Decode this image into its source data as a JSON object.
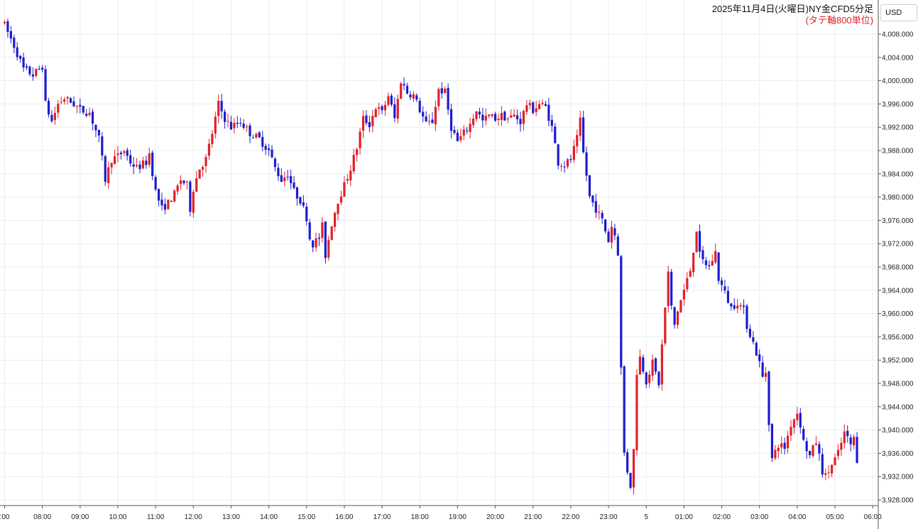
{
  "header": {
    "title": "2025年11月4日(火曜日)NY金CFD5分足",
    "subtitle": "(タテ軸800単位)",
    "currency": "USD"
  },
  "colors": {
    "up": "#e0202a",
    "down": "#1c1ccc",
    "grid": "#e8eef3",
    "background": "#ffffff"
  },
  "chart_data": {
    "type": "candlestick",
    "title": "2025年11月4日(火曜日)NY金CFD5分足",
    "subtitle": "(タテ軸800単位)",
    "currency": "USD",
    "y_axis_side": "right",
    "ylim": [
      3927,
      4010
    ],
    "y_ticks": [
      4008,
      4004,
      4000,
      3996,
      3992,
      3988,
      3984,
      3980,
      3976,
      3972,
      3968,
      3964,
      3960,
      3956,
      3952,
      3948,
      3944,
      3940,
      3936,
      3932,
      3928
    ],
    "y_tick_labels": [
      "4,008.000",
      "4,004.000",
      "4,000.000",
      "3,996.000",
      "3,992.000",
      "3,988.000",
      "3,984.000",
      "3,980.000",
      "3,976.000",
      "3,972.000",
      "3,968.000",
      "3,964.000",
      "3,960.000",
      "3,956.000",
      "3,952.000",
      "3,948.000",
      "3,944.000",
      "3,940.000",
      "3,936.000",
      "3,932.000",
      "3,928.000"
    ],
    "x_ticks": [
      {
        "label": ":00",
        "bar": 0
      },
      {
        "label": "08:00",
        "bar": 12
      },
      {
        "label": "09:00",
        "bar": 24
      },
      {
        "label": "10:00",
        "bar": 36
      },
      {
        "label": "11:00",
        "bar": 48
      },
      {
        "label": "12:00",
        "bar": 60
      },
      {
        "label": "13:00",
        "bar": 72
      },
      {
        "label": "14:00",
        "bar": 84
      },
      {
        "label": "15:00",
        "bar": 96
      },
      {
        "label": "16:00",
        "bar": 108
      },
      {
        "label": "17:00",
        "bar": 120
      },
      {
        "label": "18:00",
        "bar": 132
      },
      {
        "label": "19:00",
        "bar": 144
      },
      {
        "label": "20:00",
        "bar": 156
      },
      {
        "label": "21:00",
        "bar": 168
      },
      {
        "label": "22:00",
        "bar": 180
      },
      {
        "label": "23:00",
        "bar": 192
      },
      {
        "label": "5",
        "bar": 204
      },
      {
        "label": "01:00",
        "bar": 216
      },
      {
        "label": "02:00",
        "bar": 228
      },
      {
        "label": "03:00",
        "bar": 240
      },
      {
        "label": "04:00",
        "bar": 252
      },
      {
        "label": "05:00",
        "bar": 264
      },
      {
        "label": "06:00",
        "bar": 276
      }
    ],
    "bars_per_hour": 12,
    "grid": true,
    "legend": "none",
    "price_path": [
      [
        0,
        4009.5
      ],
      [
        3,
        4006
      ],
      [
        6,
        4002
      ],
      [
        9,
        4001
      ],
      [
        12,
        4002.5
      ],
      [
        13,
        3996
      ],
      [
        15,
        3993
      ],
      [
        17,
        3996
      ],
      [
        19,
        3997
      ],
      [
        22,
        3996
      ],
      [
        24,
        3995
      ],
      [
        27,
        3994.5
      ],
      [
        30,
        3990
      ],
      [
        32,
        3983
      ],
      [
        34,
        3986.5
      ],
      [
        36,
        3987
      ],
      [
        38,
        3988
      ],
      [
        40,
        3986
      ],
      [
        42,
        3985
      ],
      [
        45,
        3986
      ],
      [
        46,
        3987.5
      ],
      [
        48,
        3981
      ],
      [
        50,
        3978
      ],
      [
        52,
        3979
      ],
      [
        54,
        3980.5
      ],
      [
        56,
        3983
      ],
      [
        58,
        3982
      ],
      [
        59,
        3978
      ],
      [
        60,
        3981.5
      ],
      [
        62,
        3985
      ],
      [
        64,
        3986.5
      ],
      [
        66,
        3991
      ],
      [
        68,
        3996
      ],
      [
        70,
        3993.5
      ],
      [
        72,
        3992
      ],
      [
        75,
        3993
      ],
      [
        78,
        3991
      ],
      [
        81,
        3990
      ],
      [
        84,
        3988
      ],
      [
        86,
        3985
      ],
      [
        88,
        3983
      ],
      [
        90,
        3984
      ],
      [
        92,
        3981
      ],
      [
        94,
        3979.5
      ],
      [
        96,
        3976.5
      ],
      [
        97,
        3973
      ],
      [
        98,
        3972
      ],
      [
        100,
        3973
      ],
      [
        101,
        3975
      ],
      [
        102,
        3970
      ],
      [
        104,
        3975.5
      ],
      [
        106,
        3979.5
      ],
      [
        108,
        3982
      ],
      [
        110,
        3985
      ],
      [
        112,
        3988.5
      ],
      [
        114,
        3993.5
      ],
      [
        116,
        3992.5
      ],
      [
        118,
        3995.5
      ],
      [
        120,
        3994.5
      ],
      [
        122,
        3997.5
      ],
      [
        124,
        3993.5
      ],
      [
        126,
        4000
      ],
      [
        128,
        3998
      ],
      [
        130,
        3997.5
      ],
      [
        132,
        3995
      ],
      [
        134,
        3992.5
      ],
      [
        136,
        3993
      ],
      [
        138,
        3998.5
      ],
      [
        140,
        3998
      ],
      [
        142,
        3992
      ],
      [
        144,
        3989.5
      ],
      [
        146,
        3991
      ],
      [
        148,
        3992.5
      ],
      [
        150,
        3995
      ],
      [
        152,
        3993
      ],
      [
        154,
        3994
      ],
      [
        156,
        3993.5
      ],
      [
        158,
        3994
      ],
      [
        160,
        3993.5
      ],
      [
        162,
        3994
      ],
      [
        164,
        3993
      ],
      [
        166,
        3996
      ],
      [
        168,
        3995
      ],
      [
        170,
        3996
      ],
      [
        172,
        3995.5
      ],
      [
        174,
        3992
      ],
      [
        176,
        3986
      ],
      [
        178,
        3985.5
      ],
      [
        180,
        3986.5
      ],
      [
        182,
        3990
      ],
      [
        183,
        3993
      ],
      [
        184,
        3987.5
      ],
      [
        186,
        3980
      ],
      [
        188,
        3978
      ],
      [
        190,
        3976
      ],
      [
        192,
        3972.5
      ],
      [
        193,
        3975
      ],
      [
        194,
        3973.5
      ],
      [
        195,
        3970.5
      ],
      [
        196,
        3950.5
      ],
      [
        197,
        3936
      ],
      [
        198,
        3933
      ],
      [
        199,
        3930.5
      ],
      [
        200,
        3936.5
      ],
      [
        201,
        3950
      ],
      [
        202,
        3952.5
      ],
      [
        204,
        3948.5
      ],
      [
        206,
        3951.5
      ],
      [
        208,
        3948
      ],
      [
        210,
        3961
      ],
      [
        211,
        3967
      ],
      [
        212,
        3961
      ],
      [
        213,
        3958
      ],
      [
        214,
        3960.5
      ],
      [
        216,
        3964
      ],
      [
        218,
        3967.5
      ],
      [
        220,
        3974.5
      ],
      [
        221,
        3970
      ],
      [
        222,
        3969
      ],
      [
        224,
        3968
      ],
      [
        226,
        3970.5
      ],
      [
        227,
        3966
      ],
      [
        229,
        3963.5
      ],
      [
        231,
        3961
      ],
      [
        233,
        3962
      ],
      [
        235,
        3960.5
      ],
      [
        236,
        3958
      ],
      [
        238,
        3955
      ],
      [
        240,
        3951.5
      ],
      [
        241,
        3949
      ],
      [
        242,
        3950
      ],
      [
        243,
        3941.5
      ],
      [
        244,
        3935
      ],
      [
        246,
        3937.5
      ],
      [
        248,
        3937
      ],
      [
        250,
        3941
      ],
      [
        252,
        3943
      ],
      [
        253,
        3941
      ],
      [
        254,
        3938
      ],
      [
        256,
        3935.5
      ],
      [
        258,
        3938
      ],
      [
        260,
        3933
      ],
      [
        261,
        3932
      ],
      [
        263,
        3934
      ],
      [
        265,
        3936
      ],
      [
        267,
        3939.5
      ],
      [
        269,
        3937.5
      ],
      [
        270,
        3938.5
      ],
      [
        271,
        3935
      ]
    ]
  }
}
